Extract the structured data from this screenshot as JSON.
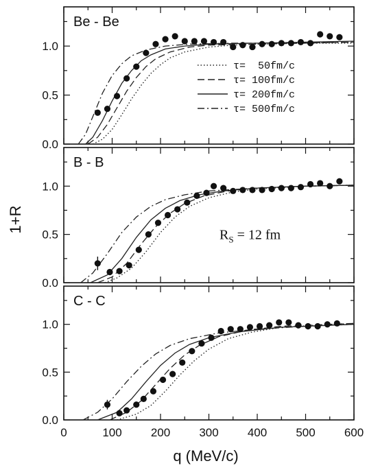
{
  "chart_data": {
    "type": "scatter",
    "xlabel": "q (MeV/c)",
    "ylabel": "1+R",
    "xlim": [
      0,
      600
    ],
    "ylim": [
      0,
      1.4
    ],
    "x_ticks": [
      "0",
      "100",
      "200",
      "300",
      "400",
      "500",
      "600"
    ],
    "y_ticks": [
      "0.0",
      "0.5",
      "1.0"
    ],
    "legend": {
      "placement": "right",
      "entries": [
        {
          "label": "τ=  50fm/c",
          "style": "dotted"
        },
        {
          "label": "τ= 100fm/c",
          "style": "dashed"
        },
        {
          "label": "τ= 200fm/c",
          "style": "solid"
        },
        {
          "label": "τ= 500fm/c",
          "style": "dash-dot"
        }
      ]
    },
    "panels": [
      {
        "label": "Be - Be",
        "annotation": "",
        "data_points": [
          [
            70,
            0.32
          ],
          [
            90,
            0.36
          ],
          [
            110,
            0.49
          ],
          [
            130,
            0.67
          ],
          [
            150,
            0.79
          ],
          [
            170,
            0.93
          ],
          [
            190,
            1.02
          ],
          [
            210,
            1.07
          ],
          [
            230,
            1.1
          ],
          [
            250,
            1.05
          ],
          [
            270,
            1.05
          ],
          [
            290,
            1.05
          ],
          [
            310,
            1.04
          ],
          [
            330,
            1.04
          ],
          [
            350,
            0.99
          ],
          [
            370,
            1.01
          ],
          [
            390,
            0.99
          ],
          [
            410,
            1.02
          ],
          [
            430,
            1.02
          ],
          [
            450,
            1.03
          ],
          [
            470,
            1.03
          ],
          [
            490,
            1.04
          ],
          [
            510,
            1.03
          ],
          [
            530,
            1.12
          ],
          [
            550,
            1.1
          ],
          [
            570,
            1.09
          ]
        ],
        "error_bars": [],
        "curves": {
          "dotted": [
            [
              60,
              0.0
            ],
            [
              80,
              0.05
            ],
            [
              100,
              0.15
            ],
            [
              120,
              0.3
            ],
            [
              140,
              0.46
            ],
            [
              160,
              0.6
            ],
            [
              180,
              0.72
            ],
            [
              200,
              0.81
            ],
            [
              220,
              0.88
            ],
            [
              250,
              0.94
            ],
            [
              300,
              0.99
            ],
            [
              350,
              1.01
            ],
            [
              400,
              1.02
            ],
            [
              500,
              1.03
            ],
            [
              600,
              1.03
            ]
          ],
          "dashed": [
            [
              50,
              0.0
            ],
            [
              70,
              0.07
            ],
            [
              90,
              0.2
            ],
            [
              110,
              0.37
            ],
            [
              130,
              0.54
            ],
            [
              150,
              0.68
            ],
            [
              170,
              0.79
            ],
            [
              190,
              0.87
            ],
            [
              220,
              0.94
            ],
            [
              260,
              0.99
            ],
            [
              300,
              1.01
            ],
            [
              400,
              1.02
            ],
            [
              500,
              1.03
            ],
            [
              600,
              1.04
            ]
          ],
          "solid": [
            [
              45,
              0.0
            ],
            [
              60,
              0.07
            ],
            [
              80,
              0.24
            ],
            [
              100,
              0.44
            ],
            [
              120,
              0.62
            ],
            [
              140,
              0.75
            ],
            [
              160,
              0.85
            ],
            [
              180,
              0.91
            ],
            [
              210,
              0.97
            ],
            [
              250,
              1.0
            ],
            [
              300,
              1.02
            ],
            [
              400,
              1.03
            ],
            [
              500,
              1.04
            ],
            [
              600,
              1.05
            ]
          ],
          "dash_dot": [
            [
              30,
              0.0
            ],
            [
              45,
              0.1
            ],
            [
              60,
              0.28
            ],
            [
              80,
              0.52
            ],
            [
              100,
              0.7
            ],
            [
              120,
              0.82
            ],
            [
              140,
              0.9
            ],
            [
              170,
              0.96
            ],
            [
              210,
              1.0
            ],
            [
              260,
              1.02
            ],
            [
              350,
              1.03
            ],
            [
              450,
              1.03
            ],
            [
              600,
              1.04
            ]
          ]
        }
      },
      {
        "label": "B - B",
        "annotation": "R_S = 12 fm",
        "data_points": [
          [
            70,
            0.2
          ],
          [
            95,
            0.11
          ],
          [
            115,
            0.12
          ],
          [
            135,
            0.18
          ],
          [
            155,
            0.34
          ],
          [
            175,
            0.5
          ],
          [
            195,
            0.62
          ],
          [
            215,
            0.7
          ],
          [
            235,
            0.76
          ],
          [
            255,
            0.83
          ],
          [
            275,
            0.9
          ],
          [
            295,
            0.93
          ],
          [
            310,
            1.0
          ],
          [
            330,
            0.98
          ],
          [
            350,
            0.95
          ],
          [
            370,
            0.96
          ],
          [
            390,
            0.96
          ],
          [
            410,
            0.96
          ],
          [
            430,
            0.97
          ],
          [
            450,
            0.98
          ],
          [
            470,
            0.98
          ],
          [
            490,
            0.99
          ],
          [
            510,
            1.02
          ],
          [
            530,
            1.03
          ],
          [
            550,
            1.0
          ],
          [
            570,
            1.05
          ]
        ],
        "error_bars": [
          [
            70,
            0.2,
            0.07
          ]
        ],
        "curves": {
          "dotted": [
            [
              85,
              0.0
            ],
            [
              110,
              0.05
            ],
            [
              140,
              0.15
            ],
            [
              170,
              0.32
            ],
            [
              200,
              0.52
            ],
            [
              230,
              0.68
            ],
            [
              260,
              0.79
            ],
            [
              300,
              0.88
            ],
            [
              350,
              0.94
            ],
            [
              400,
              0.97
            ],
            [
              500,
              1.0
            ],
            [
              600,
              1.01
            ]
          ],
          "dashed": [
            [
              70,
              0.0
            ],
            [
              100,
              0.06
            ],
            [
              130,
              0.2
            ],
            [
              160,
              0.4
            ],
            [
              190,
              0.58
            ],
            [
              220,
              0.72
            ],
            [
              250,
              0.82
            ],
            [
              290,
              0.9
            ],
            [
              340,
              0.95
            ],
            [
              400,
              0.98
            ],
            [
              500,
              1.0
            ],
            [
              600,
              1.01
            ]
          ],
          "solid": [
            [
              55,
              0.0
            ],
            [
              90,
              0.08
            ],
            [
              120,
              0.25
            ],
            [
              150,
              0.47
            ],
            [
              180,
              0.65
            ],
            [
              210,
              0.77
            ],
            [
              240,
              0.85
            ],
            [
              280,
              0.91
            ],
            [
              330,
              0.95
            ],
            [
              400,
              0.98
            ],
            [
              500,
              1.0
            ],
            [
              600,
              1.01
            ]
          ],
          "dash_dot": [
            [
              35,
              0.0
            ],
            [
              60,
              0.1
            ],
            [
              90,
              0.3
            ],
            [
              120,
              0.52
            ],
            [
              150,
              0.68
            ],
            [
              180,
              0.79
            ],
            [
              210,
              0.86
            ],
            [
              250,
              0.91
            ],
            [
              300,
              0.95
            ],
            [
              400,
              0.98
            ],
            [
              500,
              1.0
            ],
            [
              600,
              1.01
            ]
          ]
        }
      },
      {
        "label": "C - C",
        "annotation": "",
        "data_points": [
          [
            90,
            0.16
          ],
          [
            115,
            0.07
          ],
          [
            130,
            0.1
          ],
          [
            150,
            0.16
          ],
          [
            165,
            0.22
          ],
          [
            185,
            0.3
          ],
          [
            205,
            0.42
          ],
          [
            225,
            0.48
          ],
          [
            245,
            0.6
          ],
          [
            265,
            0.72
          ],
          [
            285,
            0.8
          ],
          [
            305,
            0.86
          ],
          [
            325,
            0.93
          ],
          [
            345,
            0.95
          ],
          [
            365,
            0.95
          ],
          [
            385,
            0.97
          ],
          [
            405,
            0.98
          ],
          [
            425,
            0.99
          ],
          [
            445,
            1.02
          ],
          [
            465,
            1.02
          ],
          [
            485,
            0.99
          ],
          [
            505,
            0.98
          ],
          [
            525,
            0.98
          ],
          [
            545,
            1.0
          ],
          [
            565,
            1.01
          ]
        ],
        "error_bars": [
          [
            90,
            0.16,
            0.05
          ]
        ],
        "curves": {
          "dotted": [
            [
              110,
              0.0
            ],
            [
              150,
              0.06
            ],
            [
              180,
              0.15
            ],
            [
              210,
              0.3
            ],
            [
              240,
              0.47
            ],
            [
              270,
              0.62
            ],
            [
              300,
              0.74
            ],
            [
              340,
              0.85
            ],
            [
              390,
              0.92
            ],
            [
              450,
              0.97
            ],
            [
              520,
              0.99
            ],
            [
              600,
              1.01
            ]
          ],
          "dashed": [
            [
              95,
              0.0
            ],
            [
              130,
              0.08
            ],
            [
              160,
              0.2
            ],
            [
              190,
              0.37
            ],
            [
              220,
              0.54
            ],
            [
              250,
              0.68
            ],
            [
              280,
              0.78
            ],
            [
              320,
              0.87
            ],
            [
              380,
              0.94
            ],
            [
              450,
              0.98
            ],
            [
              600,
              1.01
            ]
          ],
          "solid": [
            [
              70,
              0.0
            ],
            [
              110,
              0.08
            ],
            [
              140,
              0.22
            ],
            [
              170,
              0.4
            ],
            [
              200,
              0.57
            ],
            [
              230,
              0.7
            ],
            [
              260,
              0.79
            ],
            [
              300,
              0.86
            ],
            [
              360,
              0.92
            ],
            [
              450,
              0.97
            ],
            [
              600,
              1.0
            ]
          ],
          "dash_dot": [
            [
              40,
              0.0
            ],
            [
              70,
              0.08
            ],
            [
              100,
              0.22
            ],
            [
              130,
              0.4
            ],
            [
              160,
              0.56
            ],
            [
              190,
              0.69
            ],
            [
              220,
              0.78
            ],
            [
              260,
              0.85
            ],
            [
              320,
              0.91
            ],
            [
              400,
              0.95
            ],
            [
              500,
              0.98
            ],
            [
              600,
              1.0
            ]
          ]
        }
      }
    ]
  }
}
